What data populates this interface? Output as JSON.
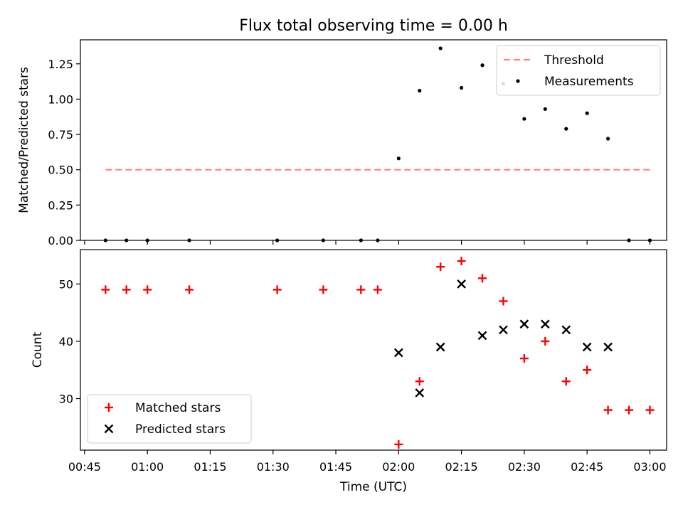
{
  "chart_data": [
    {
      "type": "scatter",
      "title": "Flux total observing time = 0.00 h",
      "ylabel": "Matched/Predicted stars",
      "ylim": [
        0,
        1.42
      ],
      "yticks": [
        "0.00",
        "0.25",
        "0.50",
        "0.75",
        "1.00",
        "1.25"
      ],
      "threshold": {
        "name": "Threshold",
        "value": 0.5,
        "x_range": [
          "00:50",
          "03:00"
        ],
        "color": "#ff7f7f",
        "style": "dashed"
      },
      "series": [
        {
          "name": "Measurements",
          "color": "#000000",
          "marker": "dot",
          "points": [
            [
              "00:50",
              0.0
            ],
            [
              "00:55",
              0.0
            ],
            [
              "01:00",
              0.0
            ],
            [
              "01:10",
              0.0
            ],
            [
              "01:31",
              0.0
            ],
            [
              "01:42",
              0.0
            ],
            [
              "01:51",
              0.0
            ],
            [
              "01:55",
              0.0
            ],
            [
              "02:00",
              0.58
            ],
            [
              "02:05",
              1.06
            ],
            [
              "02:10",
              1.36
            ],
            [
              "02:15",
              1.08
            ],
            [
              "02:20",
              1.24
            ],
            [
              "02:25",
              1.11
            ],
            [
              "02:30",
              0.86
            ],
            [
              "02:35",
              0.93
            ],
            [
              "02:40",
              0.79
            ],
            [
              "02:45",
              0.9
            ],
            [
              "02:50",
              0.72
            ],
            [
              "02:55",
              0.0
            ],
            [
              "03:00",
              0.0
            ]
          ]
        }
      ],
      "legend": {
        "position": "top-right"
      }
    },
    {
      "type": "scatter",
      "xlabel": "Time (UTC)",
      "ylabel": "Count",
      "ylim": [
        21,
        56
      ],
      "yticks": [
        "30",
        "40",
        "50"
      ],
      "xlim": [
        "00:44",
        "03:04"
      ],
      "xticks": [
        "00:45",
        "01:00",
        "01:15",
        "01:30",
        "01:45",
        "02:00",
        "02:15",
        "02:30",
        "02:45",
        "03:00"
      ],
      "series": [
        {
          "name": "Matched stars",
          "color": "#ff0000",
          "marker": "plus",
          "points": [
            [
              "00:50",
              49
            ],
            [
              "00:55",
              49
            ],
            [
              "01:00",
              49
            ],
            [
              "01:10",
              49
            ],
            [
              "01:31",
              49
            ],
            [
              "01:42",
              49
            ],
            [
              "01:51",
              49
            ],
            [
              "01:55",
              49
            ],
            [
              "02:00",
              22
            ],
            [
              "02:05",
              33
            ],
            [
              "02:10",
              53
            ],
            [
              "02:15",
              54
            ],
            [
              "02:20",
              51
            ],
            [
              "02:25",
              47
            ],
            [
              "02:30",
              37
            ],
            [
              "02:35",
              40
            ],
            [
              "02:40",
              33
            ],
            [
              "02:45",
              35
            ],
            [
              "02:50",
              28
            ],
            [
              "02:55",
              28
            ],
            [
              "03:00",
              28
            ]
          ]
        },
        {
          "name": "Predicted stars",
          "color": "#000000",
          "marker": "x",
          "points": [
            [
              "02:00",
              38
            ],
            [
              "02:05",
              31
            ],
            [
              "02:10",
              39
            ],
            [
              "02:15",
              50
            ],
            [
              "02:20",
              41
            ],
            [
              "02:25",
              42
            ],
            [
              "02:30",
              43
            ],
            [
              "02:35",
              43
            ],
            [
              "02:40",
              42
            ],
            [
              "02:45",
              39
            ],
            [
              "02:50",
              39
            ]
          ]
        }
      ],
      "legend": {
        "position": "bottom-left"
      }
    }
  ]
}
